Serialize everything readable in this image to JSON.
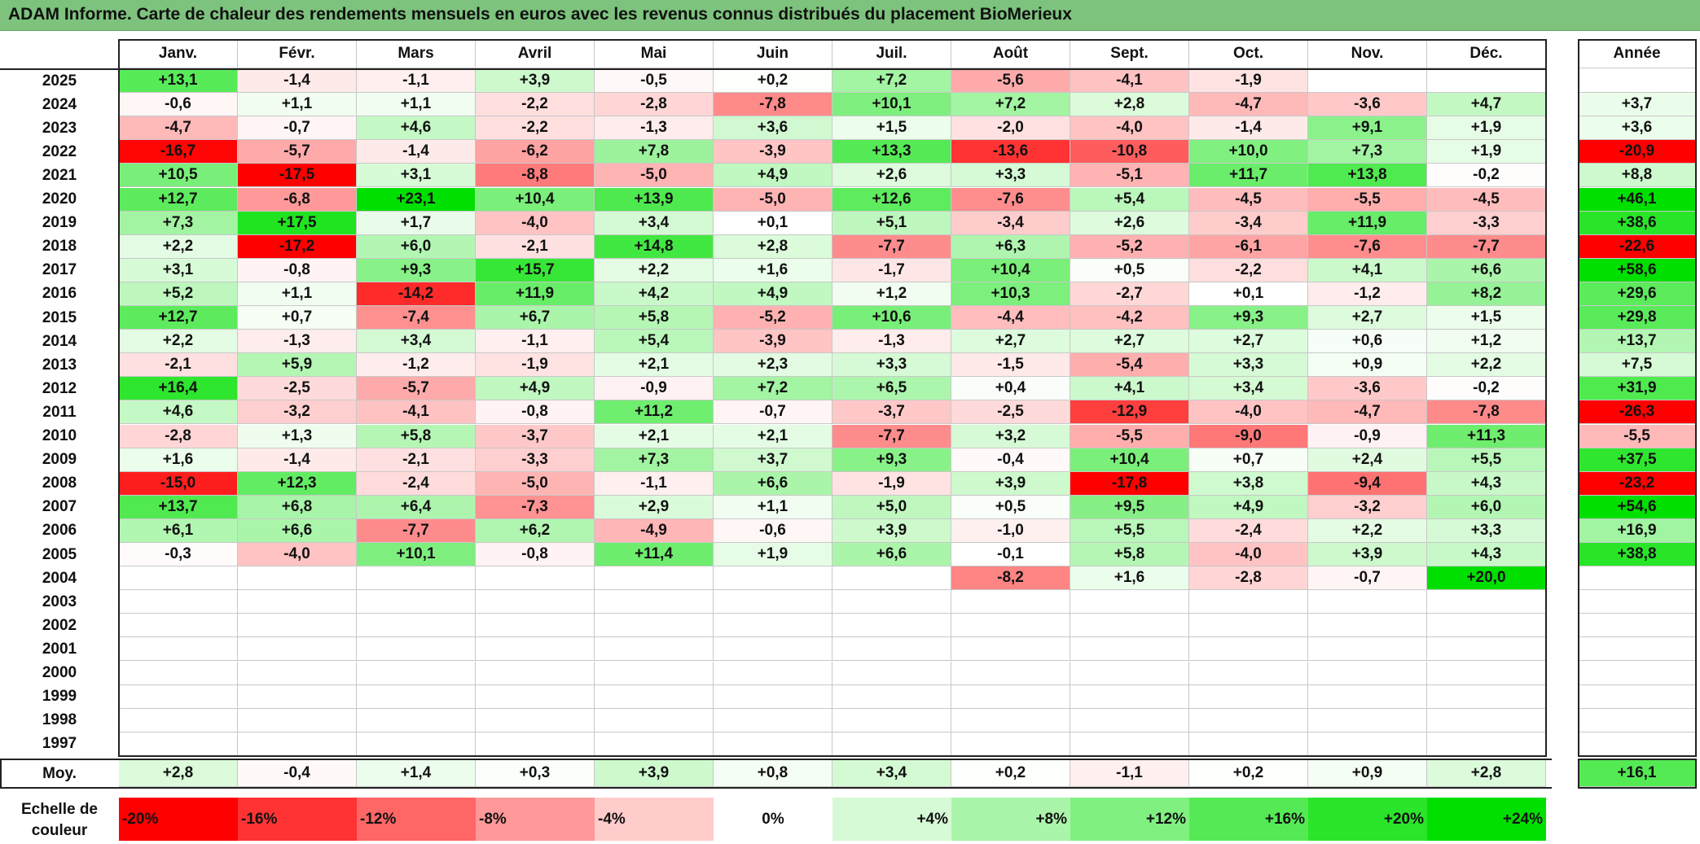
{
  "title": "ADAM Informe. Carte de chaleur des rendements mensuels en euros avec les revenus connus distribués du placement BioMerieux",
  "chart_data": {
    "type": "heatmap",
    "title": "ADAM Informe. Carte de chaleur des rendements mensuels en euros avec les revenus connus distribués du placement BioMerieux",
    "columns": [
      "Janv.",
      "Févr.",
      "Mars",
      "Avril",
      "Mai",
      "Juin",
      "Juil.",
      "Août",
      "Sept.",
      "Oct.",
      "Nov.",
      "Déc."
    ],
    "annual_header": "Année",
    "rows": [
      {
        "year": "2025",
        "values": [
          "+13,1",
          "-1,4",
          "-1,1",
          "+3,9",
          "-0,5",
          "+0,2",
          "+7,2",
          "-5,6",
          "-4,1",
          "-1,9",
          "",
          ""
        ],
        "annual": ""
      },
      {
        "year": "2024",
        "values": [
          "-0,6",
          "+1,1",
          "+1,1",
          "-2,2",
          "-2,8",
          "-7,8",
          "+10,1",
          "+7,2",
          "+2,8",
          "-4,7",
          "-3,6",
          "+4,7"
        ],
        "annual": "+3,7"
      },
      {
        "year": "2023",
        "values": [
          "-4,7",
          "-0,7",
          "+4,6",
          "-2,2",
          "-1,3",
          "+3,6",
          "+1,5",
          "-2,0",
          "-4,0",
          "-1,4",
          "+9,1",
          "+1,9"
        ],
        "annual": "+3,6"
      },
      {
        "year": "2022",
        "values": [
          "-16,7",
          "-5,7",
          "-1,4",
          "-6,2",
          "+7,8",
          "-3,9",
          "+13,3",
          "-13,6",
          "-10,8",
          "+10,0",
          "+7,3",
          "+1,9"
        ],
        "annual": "-20,9"
      },
      {
        "year": "2021",
        "values": [
          "+10,5",
          "-17,5",
          "+3,1",
          "-8,8",
          "-5,0",
          "+4,9",
          "+2,6",
          "+3,3",
          "-5,1",
          "+11,7",
          "+13,8",
          "-0,2"
        ],
        "annual": "+8,8"
      },
      {
        "year": "2020",
        "values": [
          "+12,7",
          "-6,8",
          "+23,1",
          "+10,4",
          "+13,9",
          "-5,0",
          "+12,6",
          "-7,6",
          "+5,4",
          "-4,5",
          "-5,5",
          "-4,5"
        ],
        "annual": "+46,1"
      },
      {
        "year": "2019",
        "values": [
          "+7,3",
          "+17,5",
          "+1,7",
          "-4,0",
          "+3,4",
          "+0,1",
          "+5,1",
          "-3,4",
          "+2,6",
          "-3,4",
          "+11,9",
          "-3,3"
        ],
        "annual": "+38,6"
      },
      {
        "year": "2018",
        "values": [
          "+2,2",
          "-17,2",
          "+6,0",
          "-2,1",
          "+14,8",
          "+2,8",
          "-7,7",
          "+6,3",
          "-5,2",
          "-6,1",
          "-7,6",
          "-7,7"
        ],
        "annual": "-22,6"
      },
      {
        "year": "2017",
        "values": [
          "+3,1",
          "-0,8",
          "+9,3",
          "+15,7",
          "+2,2",
          "+1,6",
          "-1,7",
          "+10,4",
          "+0,5",
          "-2,2",
          "+4,1",
          "+6,6"
        ],
        "annual": "+58,6"
      },
      {
        "year": "2016",
        "values": [
          "+5,2",
          "+1,1",
          "-14,2",
          "+11,9",
          "+4,2",
          "+4,9",
          "+1,2",
          "+10,3",
          "-2,7",
          "+0,1",
          "-1,2",
          "+8,2"
        ],
        "annual": "+29,6"
      },
      {
        "year": "2015",
        "values": [
          "+12,7",
          "+0,7",
          "-7,4",
          "+6,7",
          "+5,8",
          "-5,2",
          "+10,6",
          "-4,4",
          "-4,2",
          "+9,3",
          "+2,7",
          "+1,5"
        ],
        "annual": "+29,8"
      },
      {
        "year": "2014",
        "values": [
          "+2,2",
          "-1,3",
          "+3,4",
          "-1,1",
          "+5,4",
          "-3,9",
          "-1,3",
          "+2,7",
          "+2,7",
          "+2,7",
          "+0,6",
          "+1,2"
        ],
        "annual": "+13,7"
      },
      {
        "year": "2013",
        "values": [
          "-2,1",
          "+5,9",
          "-1,2",
          "-1,9",
          "+2,1",
          "+2,3",
          "+3,3",
          "-1,5",
          "-5,4",
          "+3,3",
          "+0,9",
          "+2,2"
        ],
        "annual": "+7,5"
      },
      {
        "year": "2012",
        "values": [
          "+16,4",
          "-2,5",
          "-5,7",
          "+4,9",
          "-0,9",
          "+7,2",
          "+6,5",
          "+0,4",
          "+4,1",
          "+3,4",
          "-3,6",
          "-0,2"
        ],
        "annual": "+31,9"
      },
      {
        "year": "2011",
        "values": [
          "+4,6",
          "-3,2",
          "-4,1",
          "-0,8",
          "+11,2",
          "-0,7",
          "-3,7",
          "-2,5",
          "-12,9",
          "-4,0",
          "-4,7",
          "-7,8"
        ],
        "annual": "-26,3"
      },
      {
        "year": "2010",
        "values": [
          "-2,8",
          "+1,3",
          "+5,8",
          "-3,7",
          "+2,1",
          "+2,1",
          "-7,7",
          "+3,2",
          "-5,5",
          "-9,0",
          "-0,9",
          "+11,3"
        ],
        "annual": "-5,5"
      },
      {
        "year": "2009",
        "values": [
          "+1,6",
          "-1,4",
          "-2,1",
          "-3,3",
          "+7,3",
          "+3,7",
          "+9,3",
          "-0,4",
          "+10,4",
          "+0,7",
          "+2,4",
          "+5,5"
        ],
        "annual": "+37,5"
      },
      {
        "year": "2008",
        "values": [
          "-15,0",
          "+12,3",
          "-2,4",
          "-5,0",
          "-1,1",
          "+6,6",
          "-1,9",
          "+3,9",
          "-17,8",
          "+3,8",
          "-9,4",
          "+4,3"
        ],
        "annual": "-23,2"
      },
      {
        "year": "2007",
        "values": [
          "+13,7",
          "+6,8",
          "+6,4",
          "-7,3",
          "+2,9",
          "+1,1",
          "+5,0",
          "+0,5",
          "+9,5",
          "+4,9",
          "-3,2",
          "+6,0"
        ],
        "annual": "+54,6"
      },
      {
        "year": "2006",
        "values": [
          "+6,1",
          "+6,6",
          "-7,7",
          "+6,2",
          "-4,9",
          "-0,6",
          "+3,9",
          "-1,0",
          "+5,5",
          "-2,4",
          "+2,2",
          "+3,3"
        ],
        "annual": "+16,9"
      },
      {
        "year": "2005",
        "values": [
          "-0,3",
          "-4,0",
          "+10,1",
          "-0,8",
          "+11,4",
          "+1,9",
          "+6,6",
          "-0,1",
          "+5,8",
          "-4,0",
          "+3,9",
          "+4,3"
        ],
        "annual": "+38,8"
      },
      {
        "year": "2004",
        "values": [
          "",
          "",
          "",
          "",
          "",
          "",
          "",
          "-8,2",
          "+1,6",
          "-2,8",
          "-0,7",
          "+20,0"
        ],
        "annual": ""
      },
      {
        "year": "2003",
        "values": [
          "",
          "",
          "",
          "",
          "",
          "",
          "",
          "",
          "",
          "",
          "",
          ""
        ],
        "annual": ""
      },
      {
        "year": "2002",
        "values": [
          "",
          "",
          "",
          "",
          "",
          "",
          "",
          "",
          "",
          "",
          "",
          ""
        ],
        "annual": ""
      },
      {
        "year": "2001",
        "values": [
          "",
          "",
          "",
          "",
          "",
          "",
          "",
          "",
          "",
          "",
          "",
          ""
        ],
        "annual": ""
      },
      {
        "year": "2000",
        "values": [
          "",
          "",
          "",
          "",
          "",
          "",
          "",
          "",
          "",
          "",
          "",
          ""
        ],
        "annual": ""
      },
      {
        "year": "1999",
        "values": [
          "",
          "",
          "",
          "",
          "",
          "",
          "",
          "",
          "",
          "",
          "",
          ""
        ],
        "annual": ""
      },
      {
        "year": "1998",
        "values": [
          "",
          "",
          "",
          "",
          "",
          "",
          "",
          "",
          "",
          "",
          "",
          ""
        ],
        "annual": ""
      },
      {
        "year": "1997",
        "values": [
          "",
          "",
          "",
          "",
          "",
          "",
          "",
          "",
          "",
          "",
          "",
          ""
        ],
        "annual": ""
      }
    ],
    "average": {
      "label": "Moy.",
      "values": [
        "+2,8",
        "-0,4",
        "+1,4",
        "+0,3",
        "+3,9",
        "+0,8",
        "+3,4",
        "+0,2",
        "-1,1",
        "+0,2",
        "+0,9",
        "+2,8"
      ],
      "annual": "+16,1"
    },
    "color_scale": {
      "label": "Echelle de couleur",
      "stops": [
        "-20%",
        "-16%",
        "-12%",
        "-8%",
        "-4%",
        "0%",
        "+4%",
        "+8%",
        "+12%",
        "+16%",
        "+20%",
        "+24%"
      ],
      "negative_color": "#ff0000",
      "neutral_color": "#ffffff",
      "positive_color": "#00e000"
    }
  }
}
